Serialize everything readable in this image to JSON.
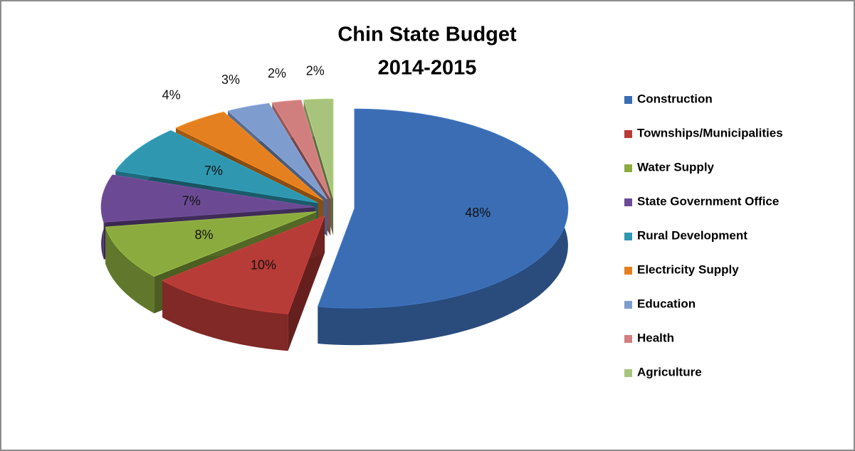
{
  "chart_data": {
    "type": "pie3d",
    "title": [
      "Chin State Budget",
      "2014-2015"
    ],
    "categories": [
      "Construction",
      "Townships/Municipalities",
      "Water Supply",
      "State Government Office",
      "Rural Development",
      "Electricity Supply",
      "Education",
      "Health",
      "Agriculture"
    ],
    "values": [
      48,
      10,
      8,
      7,
      7,
      4,
      3,
      2,
      2
    ],
    "value_labels": [
      "48%",
      "10%",
      "8%",
      "7%",
      "7%",
      "4%",
      "3%",
      "2%",
      "2%"
    ],
    "colors": [
      "#3a6db3",
      "#b73b37",
      "#8bab3f",
      "#6b4a93",
      "#2f97b0",
      "#e4801f",
      "#7f9ccf",
      "#d07f7e",
      "#a8c47c"
    ],
    "legend": "right"
  }
}
